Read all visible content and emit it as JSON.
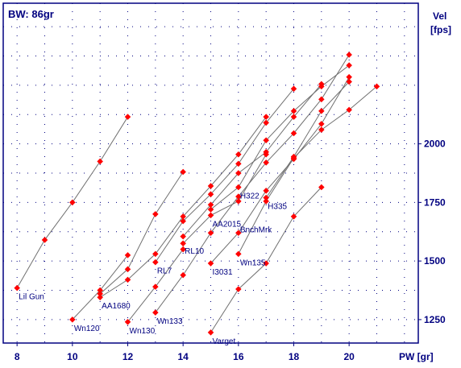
{
  "chart_data": {
    "type": "line",
    "title": "BW:  86gr",
    "xlabel": "PW [gr]",
    "ylabel_line1": "Vel",
    "ylabel_line2": "[fps]",
    "xlim": [
      7.5,
      22.5
    ],
    "ylim": [
      1150,
      2600
    ],
    "x_ticks": [
      8,
      10,
      12,
      14,
      16,
      18,
      20
    ],
    "y_ticks": [
      1250,
      1500,
      1750,
      2000
    ],
    "grid": true,
    "colors": {
      "line": "#707070",
      "marker": "#ff0000",
      "text": "#000080",
      "frame": "#000080",
      "grid": "#000080"
    },
    "series": [
      {
        "name": "Lil Gun",
        "points": [
          [
            8,
            1385
          ],
          [
            9,
            1590
          ],
          [
            10,
            1750
          ],
          [
            11,
            1925
          ],
          [
            12,
            2115
          ]
        ],
        "label_at": [
          8,
          1385
        ]
      },
      {
        "name": "Wn120",
        "points": [
          [
            10,
            1250
          ],
          [
            11,
            1375
          ],
          [
            12,
            1525
          ]
        ],
        "label_at": [
          10,
          1250
        ]
      },
      {
        "name": "Wn130",
        "points": [
          [
            12,
            1240
          ],
          [
            13,
            1390
          ],
          [
            14,
            1550
          ]
        ],
        "label_at": [
          12,
          1240
        ]
      },
      {
        "name": "AA1680",
        "points": [
          [
            11,
            1345
          ],
          [
            12,
            1420
          ],
          [
            13,
            1530
          ],
          [
            14,
            1690
          ],
          [
            15,
            1820
          ],
          [
            16,
            1955
          ],
          [
            17,
            2115
          ]
        ],
        "label_at": [
          11,
          1345
        ]
      },
      {
        "name": "RL7",
        "points": [
          [
            11,
            1360
          ],
          [
            12,
            1465
          ],
          [
            13,
            1700
          ],
          [
            14,
            1880
          ]
        ],
        "label_at": [
          13,
          1495
        ]
      },
      {
        "name": "RL10",
        "points": [
          [
            13,
            1495
          ],
          [
            14,
            1670
          ],
          [
            15,
            1785
          ],
          [
            16,
            1915
          ],
          [
            17,
            2090
          ],
          [
            18,
            2235
          ]
        ],
        "label_at": [
          14,
          1580
        ]
      },
      {
        "name": "AA2015",
        "points": [
          [
            14,
            1575
          ],
          [
            15,
            1695
          ],
          [
            16,
            1755
          ],
          [
            17,
            1955
          ]
        ],
        "label_at": [
          15,
          1695
        ]
      },
      {
        "name": "Wn133",
        "points": [
          [
            13,
            1280
          ],
          [
            14,
            1440
          ],
          [
            15,
            1620
          ],
          [
            16,
            1775
          ],
          [
            17,
            1920
          ],
          [
            18,
            2045
          ],
          [
            19,
            2190
          ],
          [
            20,
            2380
          ]
        ],
        "label_at": [
          13,
          1280
        ]
      },
      {
        "name": "H322",
        "points": [
          [
            14,
            1605
          ],
          [
            15,
            1740
          ],
          [
            16,
            1875
          ],
          [
            17,
            1965
          ],
          [
            18,
            2115
          ],
          [
            19,
            2255
          ]
        ],
        "label_at": [
          16,
          1815
        ]
      },
      {
        "name": "BnchMrk",
        "points": [
          [
            15,
            1720
          ],
          [
            16,
            1815
          ],
          [
            17,
            2015
          ],
          [
            18,
            2140
          ],
          [
            19,
            2245
          ],
          [
            20,
            2335
          ]
        ],
        "label_at": [
          16,
          1670
        ]
      },
      {
        "name": "I3031",
        "points": [
          [
            15,
            1490
          ],
          [
            16,
            1620
          ],
          [
            17,
            1800
          ],
          [
            18,
            1935
          ],
          [
            19,
            2085
          ],
          [
            20,
            2285
          ]
        ],
        "label_at": [
          15,
          1490
        ]
      },
      {
        "name": "H335",
        "points": [
          [
            17,
            1770
          ],
          [
            18,
            1945
          ],
          [
            19,
            2140
          ],
          [
            20,
            2265
          ]
        ],
        "label_at": [
          17,
          1770
        ]
      },
      {
        "name": "Wn135",
        "points": [
          [
            16,
            1530
          ],
          [
            17,
            1755
          ],
          [
            18,
            1940
          ],
          [
            19,
            2060
          ],
          [
            20,
            2145
          ],
          [
            21,
            2245
          ]
        ],
        "label_at": [
          16,
          1530
        ]
      },
      {
        "name": "Varget",
        "points": [
          [
            15,
            1195
          ],
          [
            16,
            1380
          ],
          [
            17,
            1490
          ],
          [
            18,
            1690
          ],
          [
            19,
            1815
          ]
        ],
        "label_at": [
          15,
          1195
        ]
      }
    ]
  }
}
